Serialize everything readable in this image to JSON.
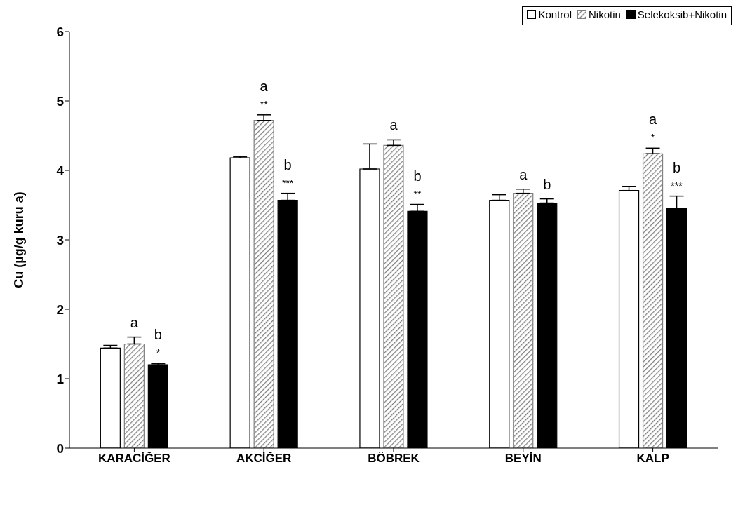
{
  "chart_data": {
    "type": "bar",
    "ylabel": "Cu (µg/g kuru a)",
    "categories": [
      "KARACİĞER",
      "AKCİĞER",
      "BÖBREK",
      "BEYİN",
      "KALP"
    ],
    "series": [
      {
        "name": "Kontrol",
        "color": "#ffffff",
        "values": [
          1.44,
          4.18,
          4.02,
          3.57,
          3.71
        ],
        "errors": [
          [
            1.44,
            1.48
          ],
          [
            4.18,
            4.2
          ],
          [
            4.02,
            4.38
          ],
          [
            3.57,
            3.65
          ],
          [
            3.71,
            3.77
          ]
        ]
      },
      {
        "name": "Nikotin",
        "color": "#808080",
        "values": [
          1.5,
          4.72,
          4.36,
          3.67,
          4.24
        ],
        "errors": [
          [
            1.5,
            1.6
          ],
          [
            4.72,
            4.8
          ],
          [
            4.36,
            4.44
          ],
          [
            3.67,
            3.73
          ],
          [
            4.24,
            4.32
          ]
        ],
        "value_labels": [
          "a",
          "a\n**",
          "a",
          "a",
          "a\n*"
        ]
      },
      {
        "name": "Selekoksib+Nikotin",
        "color": "#000000",
        "values": [
          1.2,
          3.57,
          3.41,
          3.53,
          3.45
        ],
        "errors": [
          [
            1.2,
            1.22
          ],
          [
            3.57,
            3.67
          ],
          [
            3.41,
            3.51
          ],
          [
            3.53,
            3.59
          ],
          [
            3.45,
            3.63
          ]
        ],
        "value_labels": [
          "b\n*",
          "b\n***",
          "b\n**",
          "b",
          "b\n***"
        ]
      }
    ],
    "ylim": [
      0,
      6
    ],
    "yticks": [
      0,
      1,
      2,
      3,
      4,
      5,
      6
    ],
    "legend": "top right"
  }
}
